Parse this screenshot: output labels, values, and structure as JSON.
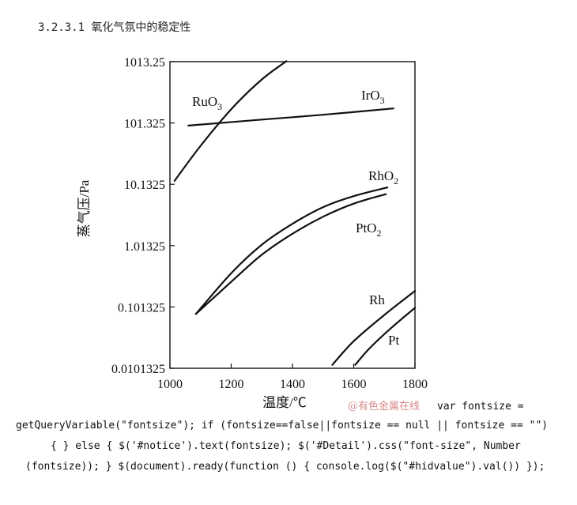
{
  "heading": "3.2.3.1 氧化气氛中的稳定性",
  "chart_data": {
    "type": "line",
    "xlabel": "温度/℃",
    "ylabel": "蒸气压/Pa",
    "xlim": [
      1000,
      1800
    ],
    "x_ticks": [
      1000,
      1200,
      1400,
      1600,
      1800
    ],
    "x_tick_labels": [
      "1000",
      "1200",
      "1400",
      "1600",
      "1800"
    ],
    "y_scale": "log",
    "y_ticks": [
      0.0101325,
      0.101325,
      1.01325,
      10.1325,
      101.325,
      1013.25
    ],
    "y_tick_labels": [
      "0.0101325",
      "0.101325",
      "1.01325",
      "10.1325",
      "101.325",
      "1013.25"
    ],
    "grid": false,
    "series": [
      {
        "name": "RuO3",
        "label_main": "RuO",
        "label_sub": "3",
        "points": [
          [
            1015,
            11.5
          ],
          [
            1100,
            43
          ],
          [
            1200,
            170
          ],
          [
            1300,
            520
          ],
          [
            1380,
            1030
          ]
        ]
      },
      {
        "name": "IrO3",
        "label_main": "IrO",
        "label_sub": "3",
        "points": [
          [
            1060,
            92
          ],
          [
            1300,
            115
          ],
          [
            1500,
            138
          ],
          [
            1730,
            175
          ]
        ]
      },
      {
        "name": "RhO2",
        "label_main": "RhO",
        "label_sub": "2",
        "points": [
          [
            1085,
            0.078
          ],
          [
            1200,
            0.36
          ],
          [
            1300,
            1.05
          ],
          [
            1400,
            2.3
          ],
          [
            1500,
            4.3
          ],
          [
            1600,
            6.5
          ],
          [
            1710,
            9.0
          ]
        ]
      },
      {
        "name": "PtO2",
        "label_main": "PtO",
        "label_sub": "2",
        "points": [
          [
            1085,
            0.078
          ],
          [
            1200,
            0.26
          ],
          [
            1300,
            0.72
          ],
          [
            1400,
            1.58
          ],
          [
            1500,
            3.0
          ],
          [
            1600,
            4.9
          ],
          [
            1705,
            7.0
          ]
        ]
      },
      {
        "name": "Rh",
        "label_main": "Rh",
        "label_sub": "",
        "points": [
          [
            1530,
            0.0115
          ],
          [
            1600,
            0.028
          ],
          [
            1700,
            0.075
          ],
          [
            1800,
            0.185
          ]
        ]
      },
      {
        "name": "Pt",
        "label_main": "Pt",
        "label_sub": "",
        "points": [
          [
            1605,
            0.0115
          ],
          [
            1650,
            0.021
          ],
          [
            1720,
            0.045
          ],
          [
            1800,
            0.098
          ]
        ]
      }
    ]
  },
  "watermark": "@有色金属在线",
  "code_lines": [
    "var fontsize =",
    "getQueryVariable(\"fontsize\"); if (fontsize==false||fontsize == null || fontsize == \"\")",
    "{ } else { $('#notice').text(fontsize); $('#Detail').css(\"font-size\", Number",
    "(fontsize)); } $(document).ready(function () { console.log($(\"#hidvalue\").val()) });"
  ]
}
